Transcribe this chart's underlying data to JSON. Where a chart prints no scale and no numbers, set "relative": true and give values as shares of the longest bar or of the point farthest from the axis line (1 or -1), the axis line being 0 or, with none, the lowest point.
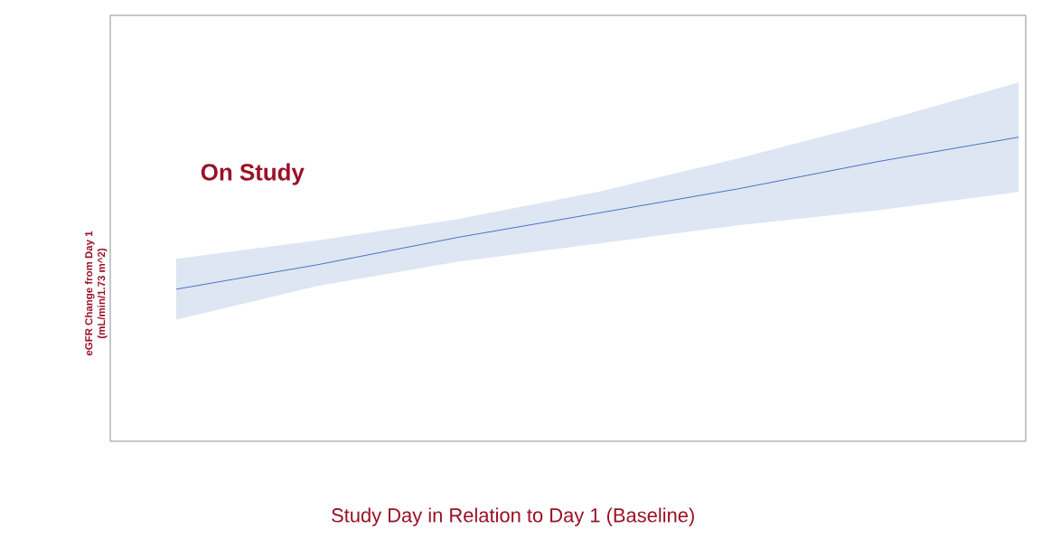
{
  "chart_data": {
    "type": "line",
    "relative": true,
    "xlabel": "Study Day in Relation to Day 1 (Baseline)",
    "ylabel": "eGFR Change from Day 1 (mL/min/1.73 m^2)",
    "annotations": [
      "On Study"
    ],
    "categories": [
      null,
      null,
      null,
      null,
      null,
      null,
      null
    ],
    "series": [
      {
        "color": "#4a72c0",
        "values": [
          0.5,
          0.58,
          0.67,
          0.75,
          0.83,
          0.92,
          1.0
        ],
        "lower": [
          0.4,
          0.51,
          0.59,
          0.65,
          0.71,
          0.76,
          0.82
        ],
        "upper": [
          0.6,
          0.66,
          0.73,
          0.82,
          0.93,
          1.05,
          1.18
        ]
      }
    ],
    "line_style": "solid"
  }
}
